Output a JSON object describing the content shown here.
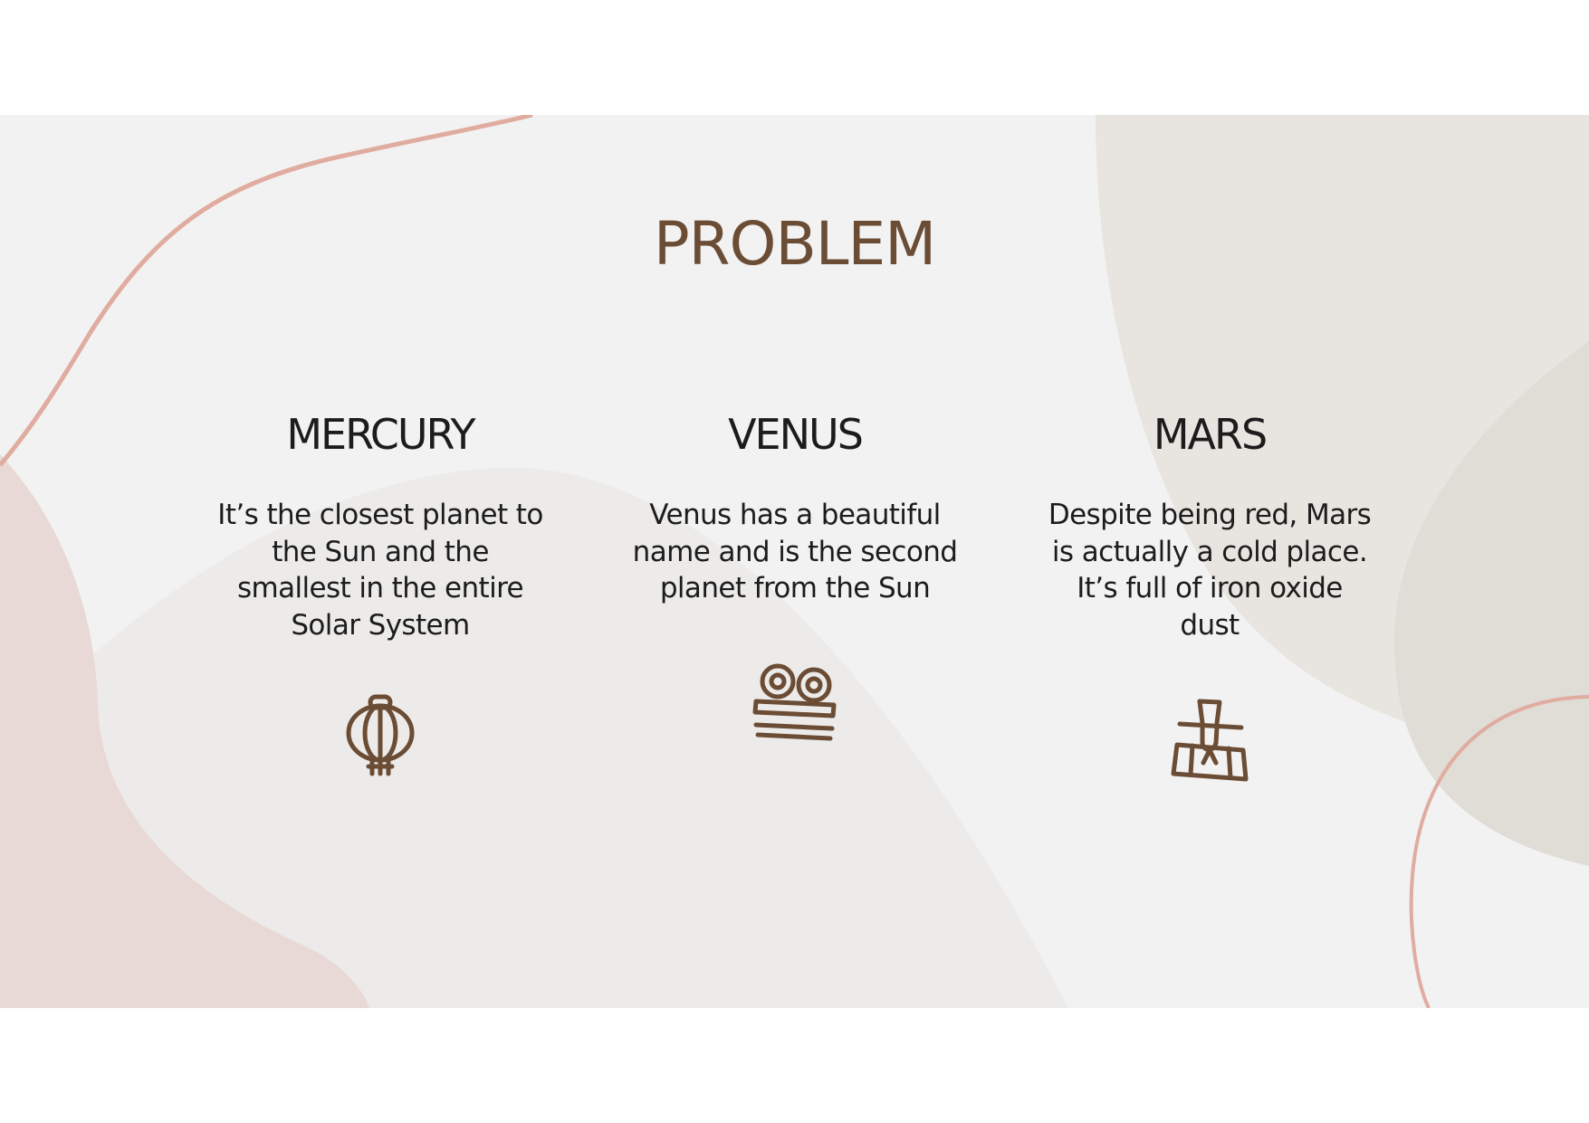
{
  "slide": {
    "title": "PROBLEM",
    "columns": [
      {
        "heading": "MERCURY",
        "body": "It’s the closest planet to the Sun and the smallest in the entire Solar System",
        "icon": "lantern-icon"
      },
      {
        "heading": "VENUS",
        "body": "Venus has a beautiful name and is the second planet from the Sun",
        "icon": "drums-icon"
      },
      {
        "heading": "MARS",
        "body": "Despite being red, Mars is actually a cold place. It’s full of iron oxide dust",
        "icon": "ink-brush-icon"
      }
    ]
  },
  "colors": {
    "accent": "#6b4c35",
    "text": "#1c1c1c",
    "background": "#f2f2f2",
    "blob_pink": "#e8d9d6",
    "blob_beige": "#e5e1dc",
    "line_pink": "#e0aca0"
  }
}
